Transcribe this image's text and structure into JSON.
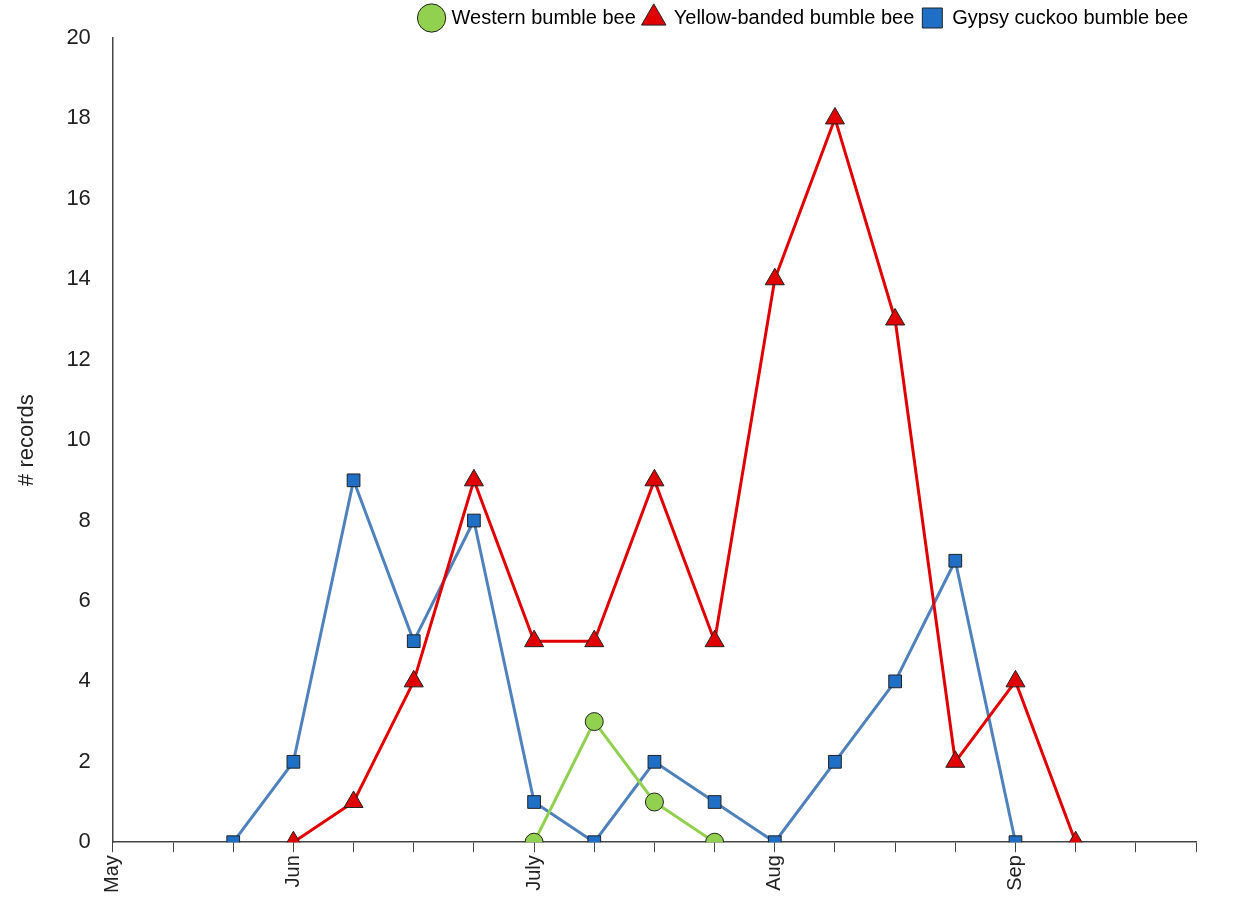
{
  "chart_data": {
    "type": "line",
    "ylabel": "# records",
    "categories": [
      "May",
      null,
      null,
      "Jun",
      null,
      null,
      null,
      "July",
      null,
      null,
      null,
      "Aug",
      null,
      null,
      null,
      "Sep",
      null,
      null,
      null
    ],
    "series": [
      {
        "name": "Western bumble bee",
        "color": "#92d050",
        "marker": "circle",
        "values": [
          null,
          null,
          null,
          null,
          null,
          null,
          null,
          0,
          3,
          1,
          0,
          null,
          null,
          null,
          null,
          null,
          null,
          null,
          null
        ]
      },
      {
        "name": "Yellow-banded bumble bee",
        "color": "#e00000",
        "marker": "triangle",
        "values": [
          null,
          null,
          null,
          0,
          1,
          4,
          9,
          5,
          5,
          9,
          5,
          14,
          18,
          13,
          2,
          4,
          0,
          null,
          null
        ]
      },
      {
        "name": "Gypsy cuckoo bumble bee",
        "color": "#4f81bd",
        "marker": "square",
        "values": [
          null,
          null,
          0,
          2,
          9,
          5,
          8,
          1,
          0,
          2,
          1,
          0,
          2,
          4,
          7,
          0,
          null,
          null,
          null
        ]
      }
    ],
    "ylim": [
      0,
      20
    ],
    "yticks": [
      0,
      2,
      4,
      6,
      8,
      10,
      12,
      14,
      16,
      18,
      20
    ],
    "legend": "top right",
    "line_style": "solid"
  }
}
